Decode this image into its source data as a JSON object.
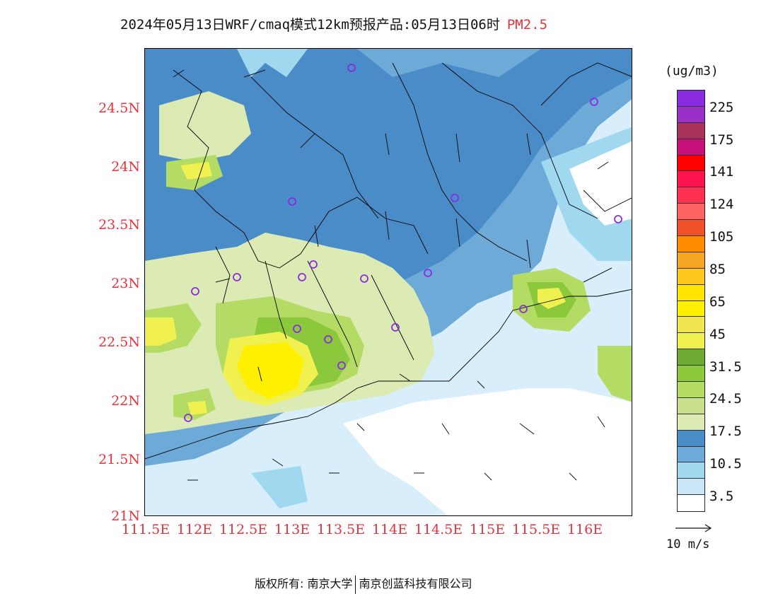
{
  "title": {
    "main": "2024年05月13日WRF/cmaq模式12km预报产品:05月13日06时",
    "pollutant": "PM2.5"
  },
  "map": {
    "lon_range": [
      111.5,
      116.5
    ],
    "lat_range": [
      21.0,
      25.0
    ],
    "lat_labels": [
      "24.5N",
      "24N",
      "23.5N",
      "23N",
      "22.5N",
      "22N",
      "21.5N",
      "21N"
    ],
    "lon_labels": [
      "111.5E",
      "112E",
      "112.5E",
      "113E",
      "113.5E",
      "114E",
      "114.5E",
      "115E",
      "115.5E",
      "116E"
    ],
    "station_marker_color": "#8a2be2",
    "coastline_color": "#000000"
  },
  "legend": {
    "units": "(ug/m3)",
    "colors": [
      "#8a2be2",
      "#9b30c8",
      "#a8325a",
      "#c8107a",
      "#ff0000",
      "#ff1450",
      "#ff3050",
      "#ff6464",
      "#f05028",
      "#ff8c00",
      "#f5a623",
      "#ffc81e",
      "#ffe600",
      "#fff000",
      "#f0e650",
      "#f0f050",
      "#6eaa32",
      "#8cc83c",
      "#b4dc64",
      "#c8e08c",
      "#dceab4",
      "#4a8cc8",
      "#6eaad8",
      "#a0d8f0",
      "#c8e6f8",
      "#ffffff"
    ],
    "labels": [
      "225",
      "175",
      "141",
      "124",
      "105",
      "85",
      "65",
      "45",
      "31.5",
      "24.5",
      "17.5",
      "10.5",
      "3.5"
    ]
  },
  "wind_reference": {
    "label": "10 m/s"
  },
  "footer": {
    "left": "版权所有: 南京大学",
    "right": "南京创蓝科技有限公司"
  }
}
